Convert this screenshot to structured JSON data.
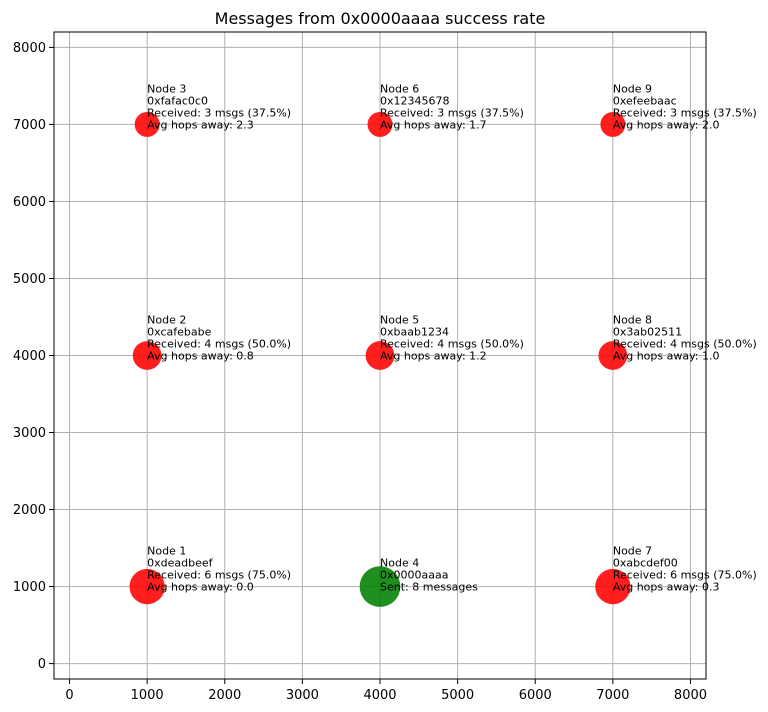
{
  "chart_data": {
    "type": "scatter",
    "title": "Messages from 0x0000aaaa success rate",
    "xlabel": "",
    "ylabel": "",
    "xlim": [
      -200,
      8200
    ],
    "ylim": [
      -200,
      8200
    ],
    "xticks": [
      0,
      1000,
      2000,
      3000,
      4000,
      5000,
      6000,
      7000,
      8000
    ],
    "yticks": [
      0,
      1000,
      2000,
      3000,
      4000,
      5000,
      6000,
      7000,
      8000
    ],
    "grid": true,
    "colors": {
      "receiver": "#ff0000",
      "sender": "#008000"
    },
    "points": [
      {
        "x": 1000,
        "y": 1000,
        "role": "receiver",
        "lines": [
          "Node 1",
          "0xdeadbeef",
          "Received: 6 msgs (75.0%)",
          "Avg hops away: 0.0"
        ],
        "received": 6
      },
      {
        "x": 1000,
        "y": 4000,
        "role": "receiver",
        "lines": [
          "Node 2",
          "0xcafebabe",
          "Received: 4 msgs (50.0%)",
          "Avg hops away: 0.8"
        ],
        "received": 4
      },
      {
        "x": 1000,
        "y": 7000,
        "role": "receiver",
        "lines": [
          "Node 3",
          "0xfafac0c0",
          "Received: 3 msgs (37.5%)",
          "Avg hops away: 2.3"
        ],
        "received": 3
      },
      {
        "x": 4000,
        "y": 1000,
        "role": "sender",
        "lines": [
          "Node 4",
          "0x0000aaaa",
          "Sent: 8 messages"
        ],
        "received": 8
      },
      {
        "x": 4000,
        "y": 4000,
        "role": "receiver",
        "lines": [
          "Node 5",
          "0xbaab1234",
          "Received: 4 msgs (50.0%)",
          "Avg hops away: 1.2"
        ],
        "received": 4
      },
      {
        "x": 4000,
        "y": 7000,
        "role": "receiver",
        "lines": [
          "Node 6",
          "0x12345678",
          "Received: 3 msgs (37.5%)",
          "Avg hops away: 1.7"
        ],
        "received": 3
      },
      {
        "x": 7000,
        "y": 1000,
        "role": "receiver",
        "lines": [
          "Node 7",
          "0xabcdef00",
          "Received: 6 msgs (75.0%)",
          "Avg hops away: 0.3"
        ],
        "received": 6
      },
      {
        "x": 7000,
        "y": 4000,
        "role": "receiver",
        "lines": [
          "Node 8",
          "0x3ab02511",
          "Received: 4 msgs (50.0%)",
          "Avg hops away: 1.0"
        ],
        "received": 4
      },
      {
        "x": 7000,
        "y": 7000,
        "role": "receiver",
        "lines": [
          "Node 9",
          "0xefeebaac",
          "Received: 3 msgs (37.5%)",
          "Avg hops away: 2.0"
        ],
        "received": 3
      }
    ]
  }
}
